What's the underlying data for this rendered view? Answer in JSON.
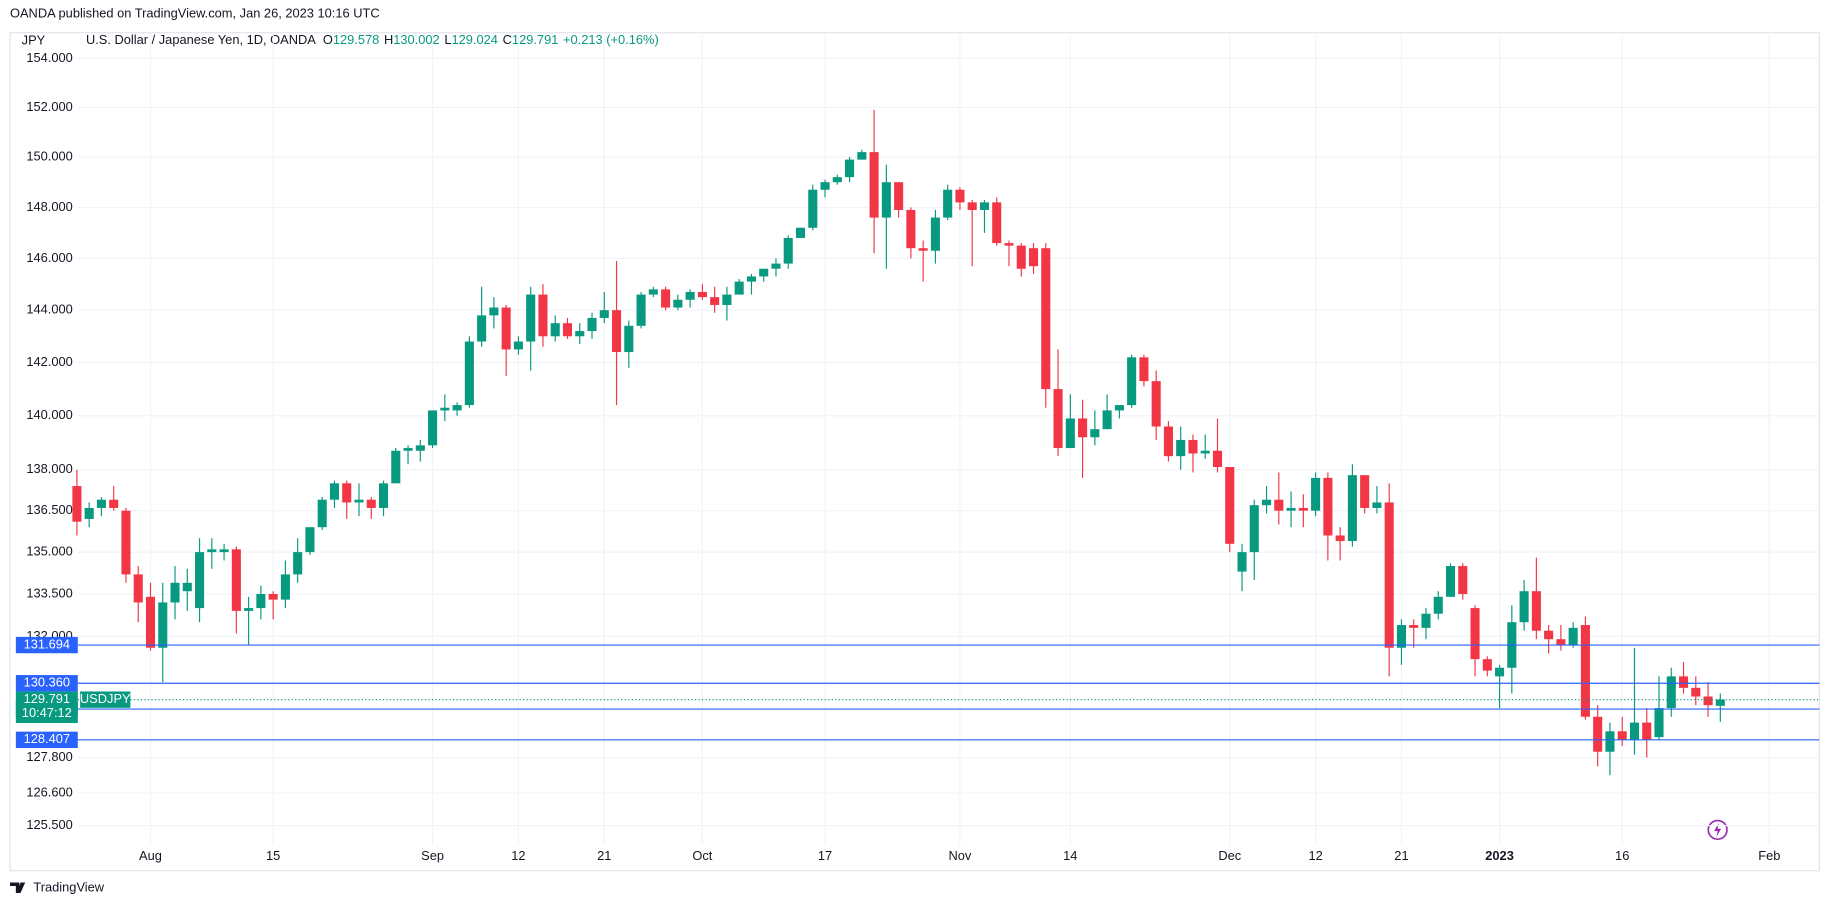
{
  "chart_data": {
    "type": "candlestick",
    "publisher": "OANDA published on TradingView.com, Jan 26, 2023 10:16 UTC",
    "y_label": "JPY",
    "title": "U.S. Dollar / Japanese Yen, 1D, OANDA",
    "ohlc_labels": [
      "O",
      "H",
      "L",
      "C"
    ],
    "change": "+0.213 (+0.16%)",
    "symbol": "USDJPY",
    "countdown": "10:47:12",
    "brand": "TradingView",
    "up_color": "#089981",
    "down_color": "#f23645",
    "level_color": "#2962ff",
    "log_scale": true,
    "grid": true,
    "ylim": [
      124.0,
      155.06
    ],
    "yticks": [
      {
        "value": 154,
        "label": "154.000"
      },
      {
        "value": 152,
        "label": "152.000"
      },
      {
        "value": 150,
        "label": "150.000"
      },
      {
        "value": 148,
        "label": "148.000"
      },
      {
        "value": 146,
        "label": "146.000"
      },
      {
        "value": 144,
        "label": "144.000"
      },
      {
        "value": 142,
        "label": "142.000"
      },
      {
        "value": 140,
        "label": "140.000"
      },
      {
        "value": 138,
        "label": "138.000"
      },
      {
        "value": 136.5,
        "label": "136.500"
      },
      {
        "value": 135,
        "label": "135.000"
      },
      {
        "value": 133.5,
        "label": "133.500"
      },
      {
        "value": 132,
        "label": "132.000"
      },
      {
        "value": 127.8,
        "label": "127.800"
      },
      {
        "value": 126.6,
        "label": "126.600"
      },
      {
        "value": 125.5,
        "label": "125.500"
      }
    ],
    "levels": [
      131.694,
      {
        "value": 130.36,
        "label": "130.360"
      },
      129.464,
      128.407
    ],
    "categories": [
      null,
      null,
      null,
      null,
      null,
      null,
      "Aug",
      null,
      null,
      null,
      null,
      null,
      null,
      null,
      null,
      null,
      "15",
      null,
      null,
      null,
      null,
      null,
      null,
      null,
      null,
      null,
      null,
      null,
      null,
      "Sep",
      null,
      null,
      null,
      null,
      null,
      null,
      "12",
      null,
      null,
      null,
      null,
      null,
      null,
      "21",
      null,
      null,
      null,
      null,
      null,
      null,
      null,
      "Oct",
      null,
      null,
      null,
      null,
      null,
      null,
      null,
      null,
      null,
      "17",
      null,
      null,
      null,
      null,
      null,
      null,
      null,
      null,
      null,
      null,
      "Nov",
      null,
      null,
      null,
      null,
      null,
      null,
      null,
      null,
      "14",
      null,
      null,
      null,
      null,
      null,
      null,
      null,
      null,
      null,
      null,
      null,
      null,
      "Dec",
      null,
      null,
      null,
      null,
      null,
      null,
      "12",
      null,
      null,
      null,
      null,
      null,
      null,
      "21",
      null,
      null,
      null,
      null,
      null,
      null,
      null,
      "2023",
      null,
      null,
      null,
      null,
      null,
      null,
      null,
      null,
      null,
      "16",
      null,
      null,
      null,
      null,
      null,
      null,
      null,
      null,
      null,
      null,
      null,
      "Feb",
      null,
      null,
      null
    ],
    "open": [
      137.4,
      136.2,
      136.6,
      136.9,
      136.5,
      134.2,
      133.4,
      131.6,
      133.2,
      133.6,
      133.0,
      135.0,
      135.0,
      135.1,
      132.9,
      133.0,
      133.5,
      133.3,
      134.2,
      135.0,
      135.9,
      136.9,
      137.5,
      136.8,
      136.9,
      136.6,
      137.5,
      138.7,
      138.7,
      138.9,
      140.2,
      140.2,
      140.4,
      142.8,
      143.8,
      144.1,
      142.5,
      142.8,
      144.6,
      143.0,
      143.5,
      143.0,
      143.2,
      143.7,
      144.0,
      142.4,
      143.4,
      144.6,
      144.8,
      144.1,
      144.4,
      144.7,
      144.5,
      144.2,
      144.6,
      145.1,
      145.3,
      145.6,
      145.8,
      146.8,
      147.2,
      148.7,
      149.0,
      149.2,
      149.9,
      150.2,
      147.6,
      149.0,
      147.9,
      146.4,
      146.3,
      147.6,
      148.7,
      148.2,
      147.9,
      148.2,
      146.6,
      146.5,
      146.4,
      146.4,
      141.0,
      138.8,
      139.9,
      139.2,
      139.5,
      140.2,
      140.4,
      142.2,
      141.3,
      139.6,
      138.5,
      139.1,
      138.6,
      138.7,
      138.1,
      134.3,
      135.0,
      136.7,
      136.9,
      136.5,
      136.6,
      136.5,
      137.7,
      135.6,
      135.4,
      137.8,
      136.6,
      136.8,
      131.6,
      132.4,
      132.3,
      132.8,
      133.4,
      134.5,
      133.0,
      131.2,
      130.6,
      130.9,
      132.5,
      133.6,
      132.2,
      131.9,
      131.7,
      132.4,
      129.2,
      128.0,
      128.7,
      128.4,
      129.0,
      128.5,
      129.5,
      130.6,
      130.2,
      129.9,
      129.578,
      null,
      null,
      null,
      null,
      null,
      null,
      null
    ],
    "high": [
      138.0,
      136.8,
      137.0,
      137.4,
      136.6,
      134.5,
      133.9,
      133.9,
      134.5,
      134.4,
      135.5,
      135.5,
      135.3,
      135.2,
      133.4,
      133.8,
      133.6,
      134.7,
      135.5,
      135.9,
      137.0,
      137.6,
      137.6,
      137.5,
      137.0,
      137.6,
      138.8,
      138.9,
      139.1,
      140.2,
      140.8,
      140.5,
      143.0,
      144.9,
      144.5,
      144.2,
      143.0,
      144.9,
      145.0,
      143.8,
      143.7,
      143.5,
      143.9,
      144.7,
      145.9,
      143.6,
      144.7,
      144.9,
      144.9,
      144.6,
      144.8,
      145.0,
      144.9,
      144.9,
      145.2,
      145.4,
      145.6,
      146.0,
      146.9,
      147.2,
      148.9,
      149.1,
      149.3,
      150.0,
      150.3,
      151.9,
      149.7,
      149.0,
      148.0,
      146.7,
      147.9,
      148.9,
      148.8,
      148.3,
      148.3,
      148.4,
      146.7,
      146.6,
      146.6,
      146.6,
      142.5,
      140.8,
      140.6,
      140.2,
      140.8,
      140.4,
      142.3,
      142.3,
      141.7,
      139.8,
      139.6,
      139.3,
      139.3,
      139.9,
      138.1,
      135.3,
      136.9,
      137.4,
      137.9,
      137.2,
      137.1,
      137.9,
      137.9,
      135.9,
      138.2,
      137.8,
      137.4,
      137.5,
      132.6,
      132.6,
      133.0,
      133.6,
      134.6,
      134.6,
      133.1,
      131.3,
      131.0,
      133.1,
      134.0,
      134.8,
      132.4,
      132.4,
      132.5,
      132.7,
      129.6,
      129.0,
      129.2,
      131.6,
      129.5,
      130.6,
      130.9,
      131.1,
      130.6,
      130.4,
      130.002,
      null,
      null,
      null,
      null,
      null,
      null,
      null
    ],
    "low": [
      135.6,
      135.9,
      136.3,
      136.5,
      133.9,
      132.5,
      131.5,
      130.4,
      132.6,
      132.9,
      132.5,
      134.4,
      134.7,
      132.1,
      131.7,
      132.6,
      132.6,
      133.0,
      133.9,
      134.9,
      135.8,
      136.6,
      136.2,
      136.3,
      136.2,
      136.3,
      137.5,
      138.2,
      138.3,
      138.8,
      139.8,
      140.0,
      140.3,
      142.6,
      143.3,
      141.5,
      142.3,
      141.7,
      142.6,
      142.8,
      142.9,
      142.7,
      142.9,
      143.5,
      140.4,
      141.8,
      143.3,
      144.5,
      144.0,
      144.0,
      144.1,
      144.4,
      143.9,
      143.6,
      144.6,
      144.6,
      145.1,
      145.3,
      145.6,
      146.8,
      147.1,
      148.4,
      148.9,
      149.0,
      149.9,
      146.2,
      145.6,
      147.6,
      146.0,
      145.1,
      145.8,
      147.5,
      147.9,
      145.7,
      147.0,
      146.5,
      145.7,
      145.3,
      145.4,
      140.3,
      138.5,
      138.8,
      137.7,
      138.9,
      139.5,
      139.9,
      140.3,
      141.1,
      139.1,
      138.3,
      138.0,
      137.9,
      138.4,
      137.9,
      135.0,
      133.6,
      134.0,
      136.4,
      136.0,
      135.9,
      135.9,
      136.3,
      134.7,
      134.7,
      135.2,
      136.4,
      136.4,
      130.6,
      131.0,
      131.6,
      131.9,
      132.6,
      133.4,
      133.3,
      130.6,
      130.6,
      129.5,
      130.0,
      132.2,
      131.9,
      131.4,
      131.5,
      131.6,
      129.1,
      127.5,
      127.2,
      128.2,
      127.9,
      127.8,
      128.4,
      129.2,
      130.0,
      129.6,
      129.2,
      129.024,
      null,
      null,
      null,
      null,
      null,
      null,
      null
    ],
    "close": [
      136.1,
      136.6,
      136.9,
      136.6,
      134.2,
      133.2,
      131.6,
      133.2,
      133.9,
      133.9,
      135.0,
      135.1,
      135.1,
      132.9,
      133.0,
      133.5,
      133.3,
      134.2,
      135.0,
      135.9,
      136.9,
      137.5,
      136.8,
      136.9,
      136.6,
      137.5,
      138.7,
      138.8,
      138.9,
      140.2,
      140.3,
      140.4,
      142.8,
      143.8,
      144.1,
      142.5,
      142.8,
      144.6,
      143.0,
      143.5,
      143.0,
      143.2,
      143.7,
      144.0,
      142.4,
      143.4,
      144.6,
      144.8,
      144.1,
      144.4,
      144.7,
      144.5,
      144.2,
      144.6,
      145.1,
      145.3,
      145.6,
      145.8,
      146.8,
      147.2,
      148.7,
      149.0,
      149.2,
      149.9,
      150.2,
      147.6,
      149.0,
      147.9,
      146.4,
      146.3,
      147.6,
      148.7,
      148.2,
      147.9,
      148.2,
      146.6,
      146.5,
      145.6,
      145.7,
      141.0,
      138.8,
      139.9,
      139.2,
      139.5,
      140.2,
      140.4,
      142.2,
      141.3,
      139.6,
      138.5,
      139.1,
      138.6,
      138.7,
      138.1,
      135.3,
      135.0,
      136.7,
      136.9,
      136.5,
      136.6,
      136.5,
      137.7,
      135.6,
      135.4,
      137.8,
      136.6,
      136.8,
      131.6,
      132.4,
      132.3,
      132.8,
      133.4,
      134.5,
      133.5,
      131.2,
      130.8,
      130.9,
      132.5,
      133.6,
      132.2,
      131.9,
      131.7,
      132.3,
      129.2,
      128.0,
      128.7,
      128.4,
      129.0,
      128.4,
      129.5,
      130.6,
      130.2,
      129.9,
      129.6,
      129.791,
      null,
      null,
      null,
      null,
      null,
      null,
      null
    ]
  }
}
